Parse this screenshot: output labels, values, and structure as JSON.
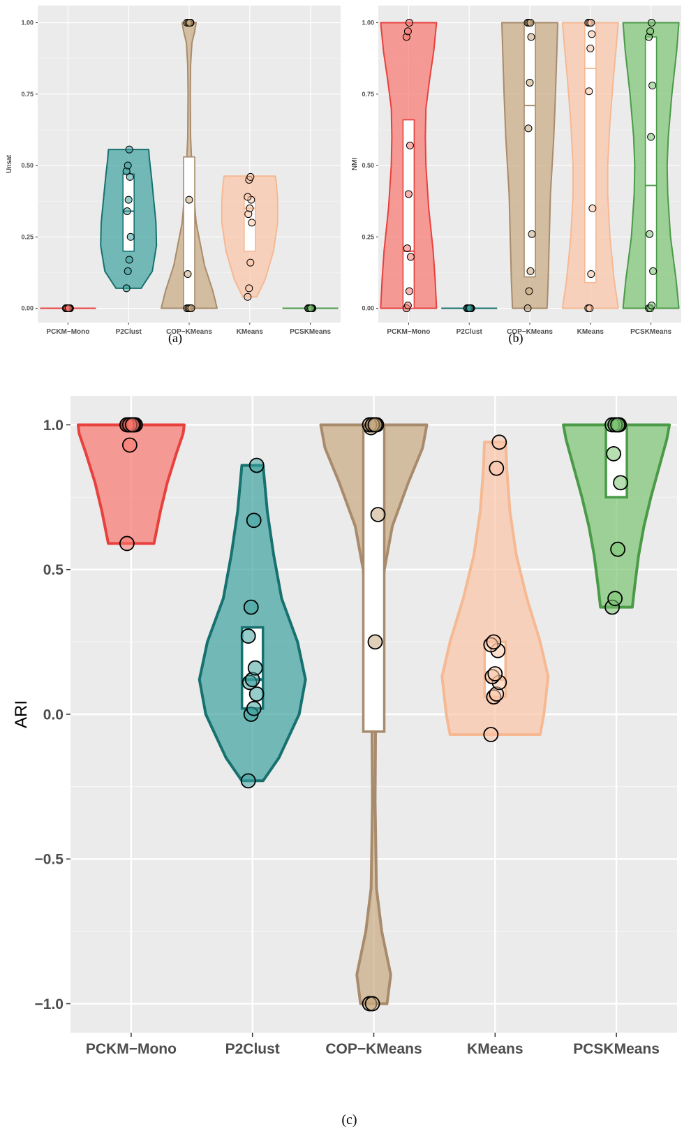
{
  "chart_data": [
    {
      "type": "violin",
      "caption": "(a)",
      "ylabel": "Unsat",
      "xlabel": "",
      "categories": [
        "PCKM−Mono",
        "P2Clust",
        "COP−KMeans",
        "KMeans",
        "PCSKMeans"
      ],
      "ylim": [
        -0.05,
        1.06
      ],
      "yticks": [
        0,
        0.25,
        0.5,
        0.75,
        1
      ],
      "ytick_labels": [
        "0.00",
        "0.25",
        "0.50",
        "0.75",
        "1.00"
      ],
      "grid": true,
      "series": [
        {
          "category": "PCKM−Mono",
          "color": "#e8413d",
          "fill": "#f8766d",
          "violin": [
            [
              0.0,
              1
            ]
          ],
          "box": {
            "q1": 0,
            "median": 0,
            "q3": 0
          },
          "points": [
            0,
            0,
            0,
            0,
            0,
            0,
            0,
            0,
            0,
            0
          ]
        },
        {
          "category": "P2Clust",
          "color": "#17716f",
          "fill": "#3fa39f",
          "violin": [
            [
              0.07,
              0.45
            ],
            [
              0.13,
              0.85
            ],
            [
              0.22,
              1.0
            ],
            [
              0.3,
              0.98
            ],
            [
              0.38,
              0.9
            ],
            [
              0.46,
              0.82
            ],
            [
              0.52,
              0.75
            ],
            [
              0.556,
              0.72
            ]
          ],
          "box": {
            "q1": 0.2,
            "median": 0.34,
            "q3": 0.47
          },
          "points": [
            0.07,
            0.13,
            0.17,
            0.25,
            0.34,
            0.38,
            0.46,
            0.48,
            0.5,
            0.556
          ]
        },
        {
          "category": "COP−KMeans",
          "color": "#a88b6c",
          "fill": "#c9a980",
          "violin": [
            [
              0.0,
              1.0
            ],
            [
              0.06,
              0.85
            ],
            [
              0.15,
              0.55
            ],
            [
              0.3,
              0.25
            ],
            [
              0.45,
              0.12
            ],
            [
              0.6,
              0.05
            ],
            [
              0.75,
              0.04
            ],
            [
              0.85,
              0.05
            ],
            [
              0.93,
              0.1
            ],
            [
              0.97,
              0.2
            ],
            [
              1.0,
              0.25
            ]
          ],
          "box": {
            "q1": 0,
            "median": 0,
            "q3": 0.53
          },
          "points": [
            0,
            0,
            0,
            0,
            0.12,
            0.38,
            1,
            1,
            1,
            1
          ]
        },
        {
          "category": "KMeans",
          "color": "#f5b993",
          "fill": "#fcc5a6",
          "violin": [
            [
              0.04,
              0.25
            ],
            [
              0.1,
              0.55
            ],
            [
              0.2,
              0.85
            ],
            [
              0.3,
              1.0
            ],
            [
              0.38,
              1.0
            ],
            [
              0.44,
              0.95
            ],
            [
              0.463,
              0.92
            ]
          ],
          "box": {
            "q1": 0.2,
            "median": 0.35,
            "q3": 0.39
          },
          "points": [
            0.04,
            0.07,
            0.16,
            0.3,
            0.33,
            0.35,
            0.38,
            0.39,
            0.45,
            0.46
          ]
        },
        {
          "category": "PCSKMeans",
          "color": "#4a9a48",
          "fill": "#7cc472",
          "violin": [
            [
              0.0,
              1
            ]
          ],
          "box": {
            "q1": 0,
            "median": 0,
            "q3": 0
          },
          "points": [
            0,
            0,
            0,
            0,
            0,
            0,
            0,
            0,
            0,
            0
          ]
        }
      ]
    },
    {
      "type": "violin",
      "caption": "(b)",
      "ylabel": "NMI",
      "xlabel": "",
      "categories": [
        "PCKM−Mono",
        "P2Clust",
        "COP−KMeans",
        "KMeans",
        "PCSKMeans"
      ],
      "ylim": [
        -0.05,
        1.06
      ],
      "yticks": [
        0,
        0.25,
        0.5,
        0.75,
        1
      ],
      "ytick_labels": [
        "0.00",
        "0.25",
        "0.50",
        "0.75",
        "1.00"
      ],
      "grid": true,
      "series": [
        {
          "category": "PCKM−Mono",
          "color": "#e8413d",
          "fill": "#f8766d",
          "violin": [
            [
              0.0,
              1.0
            ],
            [
              0.1,
              0.95
            ],
            [
              0.2,
              0.88
            ],
            [
              0.35,
              0.72
            ],
            [
              0.5,
              0.62
            ],
            [
              0.6,
              0.6
            ],
            [
              0.7,
              0.62
            ],
            [
              0.8,
              0.75
            ],
            [
              0.9,
              0.9
            ],
            [
              1.0,
              1.0
            ]
          ],
          "box": {
            "q1": 0,
            "median": 0.2,
            "q3": 0.66
          },
          "points": [
            0,
            0.01,
            0.06,
            0.18,
            0.21,
            0.4,
            0.57,
            0.95,
            0.97,
            1.0
          ]
        },
        {
          "category": "P2Clust",
          "color": "#17716f",
          "fill": "#3fa39f",
          "violin": [
            [
              0.0,
              1
            ]
          ],
          "box": {
            "q1": 0,
            "median": 0,
            "q3": 0
          },
          "points": [
            0,
            0,
            0,
            0,
            0,
            0,
            0,
            0,
            0,
            0
          ]
        },
        {
          "category": "COP−KMeans",
          "color": "#a88b6c",
          "fill": "#c9a980",
          "violin": [
            [
              0.0,
              0.62
            ],
            [
              0.1,
              0.66
            ],
            [
              0.25,
              0.7
            ],
            [
              0.4,
              0.74
            ],
            [
              0.5,
              0.8
            ],
            [
              0.6,
              0.86
            ],
            [
              0.75,
              0.92
            ],
            [
              0.9,
              0.97
            ],
            [
              1.0,
              1.0
            ]
          ],
          "box": {
            "q1": 0.11,
            "median": 0.71,
            "q3": 1.0
          },
          "points": [
            0,
            0.06,
            0.13,
            0.26,
            0.63,
            0.79,
            0.95,
            1.0,
            1.0,
            1.0
          ]
        },
        {
          "category": "KMeans",
          "color": "#f5b993",
          "fill": "#fcc5a6",
          "violin": [
            [
              0.0,
              1.0
            ],
            [
              0.1,
              0.85
            ],
            [
              0.25,
              0.7
            ],
            [
              0.4,
              0.62
            ],
            [
              0.5,
              0.62
            ],
            [
              0.65,
              0.7
            ],
            [
              0.8,
              0.82
            ],
            [
              0.92,
              0.93
            ],
            [
              1.0,
              1.0
            ]
          ],
          "box": {
            "q1": 0.09,
            "median": 0.84,
            "q3": 1.0
          },
          "points": [
            0,
            0,
            0.12,
            0.35,
            0.76,
            0.91,
            0.96,
            1.0,
            1.0,
            1.0
          ]
        },
        {
          "category": "PCSKMeans",
          "color": "#4a9a48",
          "fill": "#7cc472",
          "violin": [
            [
              0.0,
              1.0
            ],
            [
              0.1,
              0.9
            ],
            [
              0.25,
              0.7
            ],
            [
              0.4,
              0.6
            ],
            [
              0.5,
              0.58
            ],
            [
              0.6,
              0.62
            ],
            [
              0.75,
              0.75
            ],
            [
              0.9,
              0.92
            ],
            [
              1.0,
              1.0
            ]
          ],
          "box": {
            "q1": 0,
            "median": 0.43,
            "q3": 0.95
          },
          "points": [
            0,
            0,
            0.01,
            0.13,
            0.26,
            0.6,
            0.78,
            0.95,
            0.97,
            1.0
          ]
        }
      ]
    },
    {
      "type": "violin",
      "caption": "(c)",
      "ylabel": "ARI",
      "xlabel": "",
      "categories": [
        "PCKM−Mono",
        "P2Clust",
        "COP−KMeans",
        "KMeans",
        "PCSKMeans"
      ],
      "ylim": [
        -1.1,
        1.1
      ],
      "yticks": [
        -1,
        -0.5,
        0,
        0.5,
        1
      ],
      "ytick_labels": [
        "−1.0",
        "−0.5",
        "0.0",
        "0.5",
        "1.0"
      ],
      "grid": true,
      "series": [
        {
          "category": "PCKM−Mono",
          "color": "#e8413d",
          "fill": "#f8766d",
          "violin": [
            [
              0.59,
              0.43
            ],
            [
              0.7,
              0.55
            ],
            [
              0.8,
              0.68
            ],
            [
              0.9,
              0.85
            ],
            [
              0.97,
              0.98
            ],
            [
              1.0,
              1.0
            ]
          ],
          "box": {
            "q1": 1.0,
            "median": 1.0,
            "q3": 1.0
          },
          "points": [
            0.59,
            0.93,
            1,
            1,
            1,
            1,
            1,
            1,
            1,
            1
          ]
        },
        {
          "category": "P2Clust",
          "color": "#17716f",
          "fill": "#3fa39f",
          "violin": [
            [
              -0.23,
              0.2
            ],
            [
              -0.15,
              0.5
            ],
            [
              0.0,
              0.88
            ],
            [
              0.12,
              1.0
            ],
            [
              0.25,
              0.85
            ],
            [
              0.4,
              0.55
            ],
            [
              0.55,
              0.4
            ],
            [
              0.7,
              0.28
            ],
            [
              0.86,
              0.2
            ]
          ],
          "box": {
            "q1": 0.02,
            "median": 0.12,
            "q3": 0.3
          },
          "points": [
            -0.23,
            0.0,
            0.02,
            0.07,
            0.11,
            0.12,
            0.16,
            0.27,
            0.37,
            0.67,
            0.86
          ]
        },
        {
          "category": "COP−KMeans",
          "color": "#a88b6c",
          "fill": "#c9a980",
          "violin": [
            [
              -1.0,
              0.25
            ],
            [
              -0.9,
              0.32
            ],
            [
              -0.75,
              0.15
            ],
            [
              -0.6,
              0.05
            ],
            [
              -0.3,
              0.025
            ],
            [
              0.0,
              0.035
            ],
            [
              0.3,
              0.1
            ],
            [
              0.5,
              0.2
            ],
            [
              0.65,
              0.35
            ],
            [
              0.8,
              0.65
            ],
            [
              0.92,
              0.92
            ],
            [
              1.0,
              1.0
            ]
          ],
          "box": {
            "q1": -0.06,
            "median": 1.0,
            "q3": 1.0
          },
          "points": [
            -1,
            -1,
            0.25,
            0.69,
            0.99,
            1,
            1,
            1,
            1,
            1
          ]
        },
        {
          "category": "KMeans",
          "color": "#f5b993",
          "fill": "#fcc5a6",
          "violin": [
            [
              -0.07,
              0.85
            ],
            [
              0.0,
              0.92
            ],
            [
              0.13,
              1.0
            ],
            [
              0.25,
              0.85
            ],
            [
              0.4,
              0.6
            ],
            [
              0.55,
              0.4
            ],
            [
              0.7,
              0.28
            ],
            [
              0.85,
              0.22
            ],
            [
              0.94,
              0.2
            ]
          ],
          "box": {
            "q1": 0.06,
            "median": 0.12,
            "q3": 0.25
          },
          "points": [
            -0.07,
            0.06,
            0.07,
            0.11,
            0.13,
            0.14,
            0.22,
            0.24,
            0.25,
            0.85,
            0.94
          ]
        },
        {
          "category": "PCSKMeans",
          "color": "#4a9a48",
          "fill": "#7cc472",
          "violin": [
            [
              0.37,
              0.3
            ],
            [
              0.45,
              0.35
            ],
            [
              0.55,
              0.42
            ],
            [
              0.65,
              0.52
            ],
            [
              0.75,
              0.65
            ],
            [
              0.85,
              0.8
            ],
            [
              0.95,
              0.95
            ],
            [
              1.0,
              1.0
            ]
          ],
          "box": {
            "q1": 0.75,
            "median": 1.0,
            "q3": 1.0
          },
          "points": [
            0.37,
            0.4,
            0.57,
            0.8,
            0.9,
            1,
            1,
            1,
            1,
            1
          ]
        }
      ]
    }
  ]
}
